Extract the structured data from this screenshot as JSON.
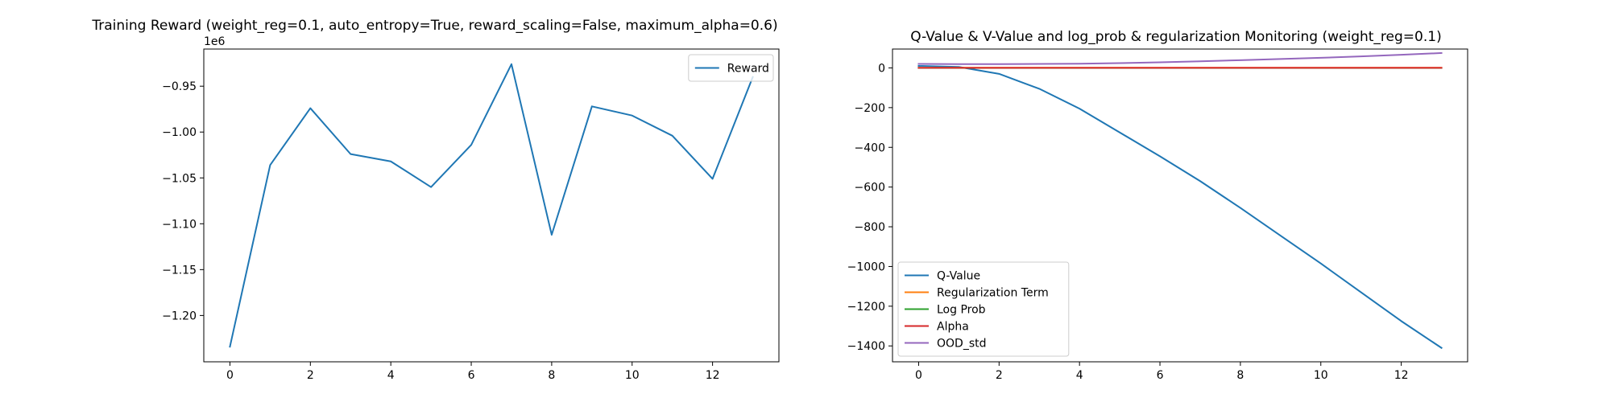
{
  "chart_data": [
    {
      "type": "line",
      "title": "Training Reward (weight_reg=0.1, auto_entropy=True, reward_scaling=False, maximum_alpha=0.6)",
      "xlabel": "",
      "ylabel": "",
      "y_offset_label": "1e6",
      "x": [
        0,
        1,
        2,
        3,
        4,
        5,
        6,
        7,
        8,
        9,
        10,
        11,
        12,
        13
      ],
      "xlim": [
        -0.65,
        13.65
      ],
      "ylim": [
        -1.2505,
        -0.9095
      ],
      "x_ticks": [
        0,
        2,
        4,
        6,
        8,
        10,
        12
      ],
      "x_tick_labels": [
        "0",
        "2",
        "4",
        "6",
        "8",
        "10",
        "12"
      ],
      "y_ticks": [
        -1.2,
        -1.15,
        -1.1,
        -1.05,
        -1.0,
        -0.95
      ],
      "y_tick_labels": [
        "−1.20",
        "−1.15",
        "−1.10",
        "−1.05",
        "−1.00",
        "−0.95"
      ],
      "grid": false,
      "legend_position": "upper right",
      "series": [
        {
          "name": "Reward",
          "color": "#1f77b4",
          "values": [
            -1.234,
            -1.036,
            -0.974,
            -1.024,
            -1.032,
            -1.06,
            -1.014,
            -0.926,
            -1.112,
            -0.972,
            -0.982,
            -1.004,
            -1.051,
            -0.94
          ]
        }
      ]
    },
    {
      "type": "line",
      "title": "Q-Value & V-Value and log_prob & regularization Monitoring (weight_reg=0.1)",
      "xlabel": "",
      "ylabel": "",
      "x": [
        0,
        1,
        2,
        3,
        4,
        5,
        6,
        7,
        8,
        9,
        10,
        11,
        12,
        13
      ],
      "xlim": [
        -0.65,
        13.65
      ],
      "ylim": [
        -1480,
        95
      ],
      "x_ticks": [
        0,
        2,
        4,
        6,
        8,
        10,
        12
      ],
      "x_tick_labels": [
        "0",
        "2",
        "4",
        "6",
        "8",
        "10",
        "12"
      ],
      "y_ticks": [
        -1400,
        -1200,
        -1000,
        -800,
        -600,
        -400,
        -200,
        0
      ],
      "y_tick_labels": [
        "−1400",
        "−1200",
        "−1000",
        "−800",
        "−600",
        "−400",
        "−200",
        "0"
      ],
      "grid": false,
      "legend_position": "lower left",
      "series": [
        {
          "name": "Q-Value",
          "color": "#1f77b4",
          "values": [
            10,
            5,
            -30,
            -105,
            -205,
            -325,
            -445,
            -570,
            -705,
            -845,
            -985,
            -1130,
            -1275,
            -1410
          ]
        },
        {
          "name": "Regularization Term",
          "color": "#ff7f0e",
          "values": [
            1,
            1,
            1,
            1,
            1,
            1,
            1,
            1,
            1,
            1,
            1,
            1,
            1,
            1
          ]
        },
        {
          "name": "Log Prob",
          "color": "#2ca02c",
          "values": [
            0,
            0,
            0,
            0,
            0,
            0,
            0,
            0,
            0,
            0,
            0,
            0,
            0,
            0
          ]
        },
        {
          "name": "Alpha",
          "color": "#d62728",
          "values": [
            0.5,
            0.5,
            0.5,
            0.5,
            0.5,
            0.5,
            0.5,
            0.5,
            0.5,
            0.5,
            0.5,
            0.5,
            0.5,
            0.5
          ]
        },
        {
          "name": "OOD_std",
          "color": "#9467bd",
          "values": [
            20,
            19,
            19,
            20,
            21,
            24,
            28,
            33,
            39,
            45,
            51,
            58,
            66,
            75
          ]
        }
      ]
    }
  ]
}
